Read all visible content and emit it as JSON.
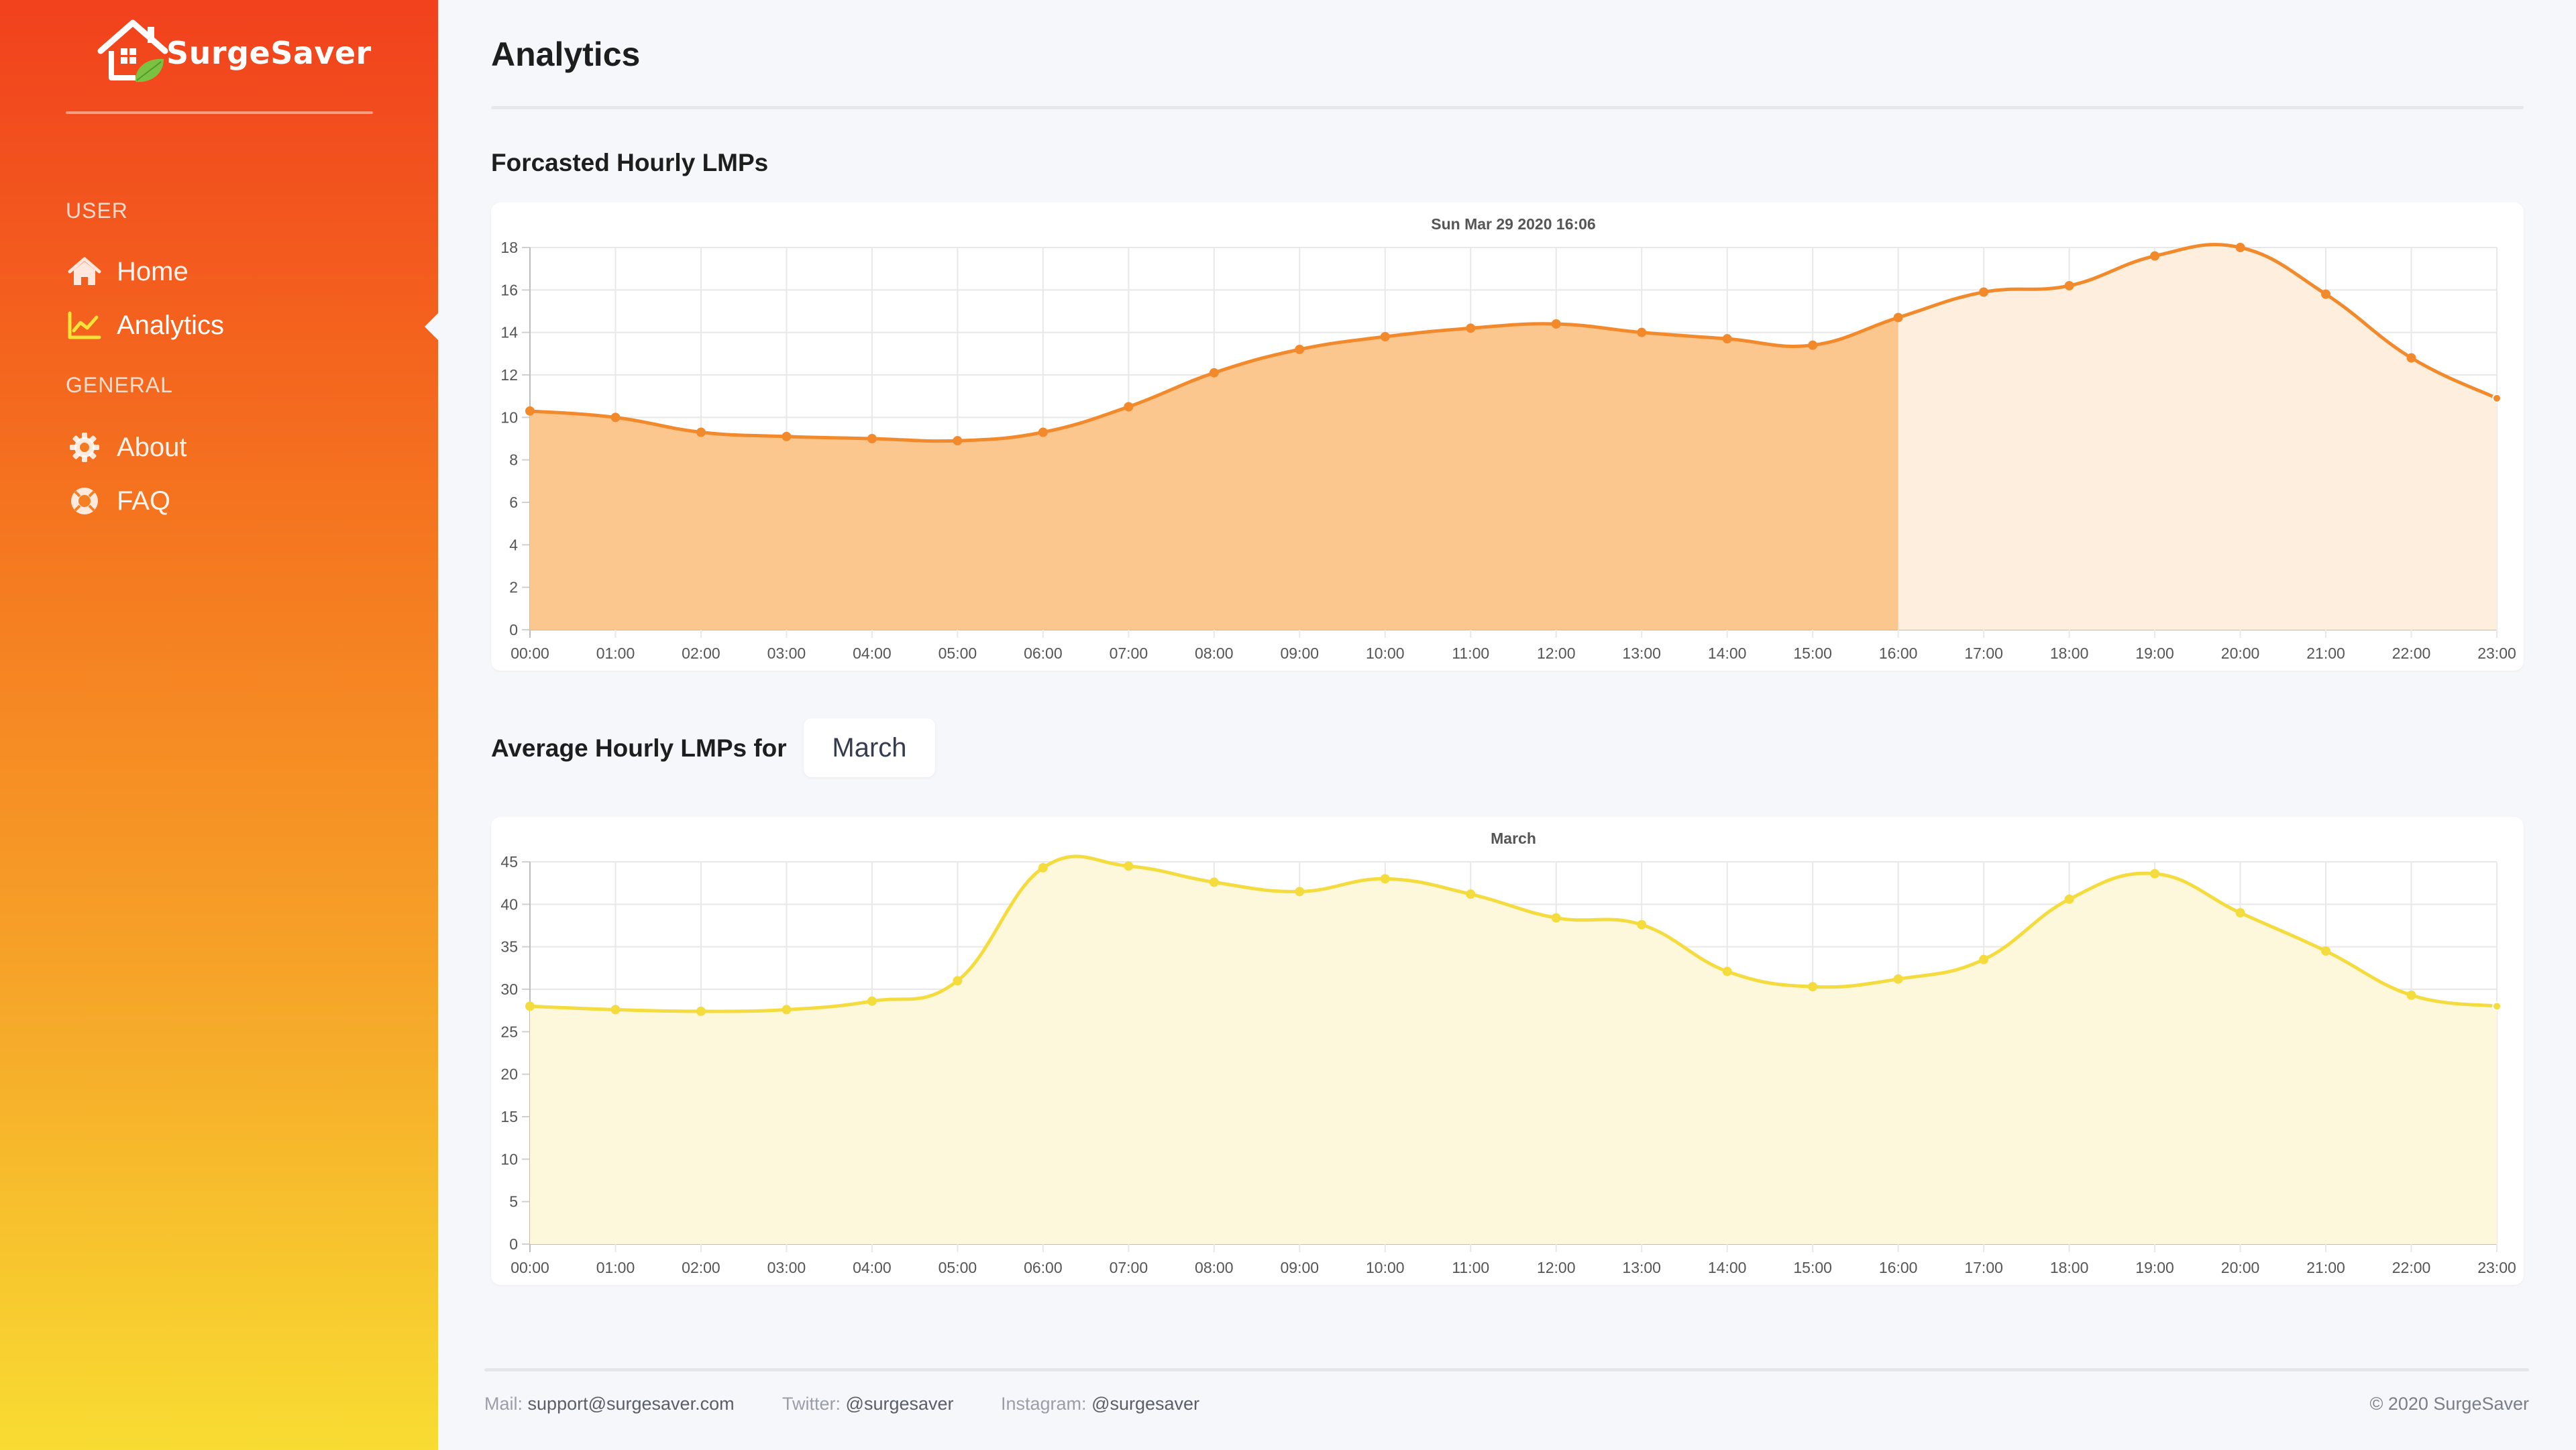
{
  "app": {
    "name": "SurgeSaver"
  },
  "sidebar": {
    "sections": [
      {
        "label": "USER"
      },
      {
        "label": "GENERAL"
      }
    ],
    "items": [
      {
        "label": "Home",
        "icon": "home-icon"
      },
      {
        "label": "Analytics",
        "icon": "chart-line-icon",
        "active": true
      },
      {
        "label": "About",
        "icon": "gear-icon"
      },
      {
        "label": "FAQ",
        "icon": "lifebuoy-icon"
      }
    ]
  },
  "main": {
    "title": "Analytics",
    "forecast_title": "Forcasted Hourly LMPs",
    "average_title": "Average Hourly LMPs for",
    "month_select": {
      "value": "March"
    }
  },
  "footer": {
    "mail_label": "Mail:",
    "mail_value": "support@surgesaver.com",
    "twitter_label": "Twitter:",
    "twitter_value": "@surgesaver",
    "instagram_label": "Instagram:",
    "instagram_value": "@surgesaver",
    "copyright": "© 2020 SurgeSaver"
  },
  "colors": {
    "forecast_line": "#f28a2c",
    "forecast_fill_past": "#fcc68f",
    "forecast_fill_future": "#fdeedd",
    "average_line": "#f4dc3e",
    "average_fill": "#fdf7dc"
  },
  "chart_data": [
    {
      "type": "area",
      "title": "Sun Mar 29 2020 16:06",
      "x": [
        "00:00",
        "01:00",
        "02:00",
        "03:00",
        "04:00",
        "05:00",
        "06:00",
        "07:00",
        "08:00",
        "09:00",
        "10:00",
        "11:00",
        "12:00",
        "13:00",
        "14:00",
        "15:00",
        "16:00",
        "17:00",
        "18:00",
        "19:00",
        "20:00",
        "21:00",
        "22:00",
        "23:00"
      ],
      "series": [
        {
          "values": [
            10.3,
            10.0,
            9.3,
            9.1,
            9.0,
            8.9,
            9.3,
            10.5,
            12.1,
            13.2,
            13.8,
            14.2,
            14.4,
            14.0,
            13.7,
            13.4,
            14.7,
            15.9,
            16.2,
            17.6,
            18.0,
            15.8,
            12.8,
            10.9
          ]
        }
      ],
      "current_hour": "16:00",
      "yticks": [
        0,
        2,
        4,
        6,
        8,
        10,
        12,
        14,
        16,
        18
      ],
      "ylim": [
        0,
        18
      ],
      "grid": true,
      "xlabel": "",
      "ylabel": ""
    },
    {
      "type": "area",
      "title": "March",
      "x": [
        "00:00",
        "01:00",
        "02:00",
        "03:00",
        "04:00",
        "05:00",
        "06:00",
        "07:00",
        "08:00",
        "09:00",
        "10:00",
        "11:00",
        "12:00",
        "13:00",
        "14:00",
        "15:00",
        "16:00",
        "17:00",
        "18:00",
        "19:00",
        "20:00",
        "21:00",
        "22:00",
        "23:00"
      ],
      "series": [
        {
          "values": [
            28.0,
            27.6,
            27.4,
            27.6,
            28.6,
            31.0,
            44.3,
            44.5,
            42.6,
            41.5,
            43.0,
            41.2,
            38.4,
            37.6,
            32.1,
            30.3,
            31.2,
            33.5,
            40.6,
            43.6,
            39.0,
            34.5,
            29.3,
            28.0
          ]
        }
      ],
      "yticks": [
        0,
        5,
        10,
        15,
        20,
        25,
        30,
        35,
        40,
        45
      ],
      "ylim": [
        0,
        45
      ],
      "grid": true,
      "xlabel": "",
      "ylabel": ""
    }
  ]
}
